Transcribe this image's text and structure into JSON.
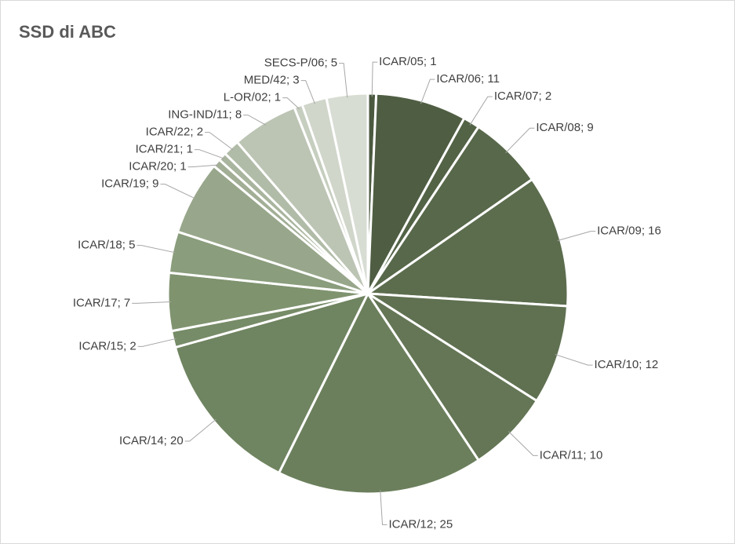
{
  "chart_data": {
    "type": "pie",
    "title": "SSD di ABC",
    "values": [
      1,
      11,
      2,
      9,
      16,
      12,
      10,
      25,
      20,
      2,
      7,
      5,
      9,
      1,
      1,
      2,
      8,
      1,
      3,
      5
    ],
    "value_labels": [
      "ICAR/05; 1",
      "ICAR/06; 11",
      "ICAR/07; 2",
      "ICAR/08; 9",
      "ICAR/09; 16",
      "ICAR/10; 12",
      "ICAR/11; 10",
      "ICAR/12; 25",
      "ICAR/14; 20",
      "ICAR/15; 2",
      "ICAR/17; 7",
      "ICAR/18; 5",
      "ICAR/19; 9",
      "ICAR/20; 1",
      "ICAR/21; 1",
      "ICAR/22; 2",
      "ING-IND/11; 8",
      "L-OR/02; 1",
      "MED/42; 3",
      "SECS-P/06; 5"
    ],
    "colors": [
      "#4b5a3f",
      "#4f5e43",
      "#536346",
      "#58684a",
      "#5c6d4e",
      "#607152",
      "#647655",
      "#6b7f5c",
      "#6f8460",
      "#768b67",
      "#7f936f",
      "#8a9d7c",
      "#98a78b",
      "#a2af96",
      "#a9b59e",
      "#b1bca8",
      "#bcc5b4",
      "#c6cebf",
      "#d0d6ca",
      "#d8ddd4"
    ]
  }
}
